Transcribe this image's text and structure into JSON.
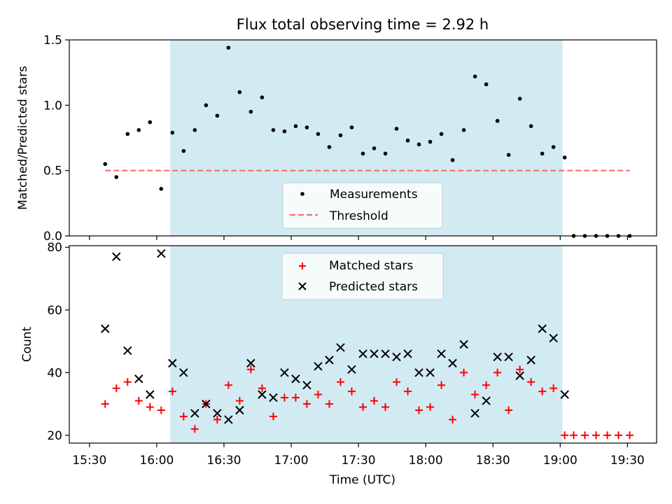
{
  "chart_data": [
    {
      "type": "scatter",
      "title": "Flux total observing time = 2.92 h",
      "ylabel": "Matched/Predicted stars",
      "xlabel": "",
      "ylim": [
        0,
        1.5
      ],
      "yticks": [
        "0.0",
        "0.5",
        "1.0",
        "1.5"
      ],
      "threshold": {
        "name": "Threshold",
        "value": 0.5,
        "x_range": [
          "15:37",
          "19:31"
        ],
        "color": "#ff6b6b"
      },
      "shaded_region": {
        "x_start": "16:06",
        "x_end": "19:01",
        "color": "#add8e6"
      },
      "legend_position": "lower-center",
      "series": [
        {
          "name": "Measurements",
          "color": "#000000",
          "marker": "dot",
          "x": [
            "15:37",
            "15:42",
            "15:47",
            "15:52",
            "15:57",
            "16:02",
            "16:07",
            "16:12",
            "16:17",
            "16:22",
            "16:27",
            "16:32",
            "16:37",
            "16:42",
            "16:47",
            "16:52",
            "16:57",
            "17:02",
            "17:07",
            "17:12",
            "17:17",
            "17:22",
            "17:27",
            "17:32",
            "17:37",
            "17:42",
            "17:47",
            "17:52",
            "17:57",
            "18:02",
            "18:07",
            "18:12",
            "18:17",
            "18:22",
            "18:27",
            "18:32",
            "18:37",
            "18:42",
            "18:47",
            "18:52",
            "18:57",
            "19:02",
            "19:06",
            "19:11",
            "19:16",
            "19:21",
            "19:26",
            "19:31"
          ],
          "y": [
            0.55,
            0.45,
            0.78,
            0.81,
            0.87,
            0.36,
            0.79,
            0.65,
            0.81,
            1.0,
            0.92,
            1.44,
            1.1,
            0.95,
            1.06,
            0.81,
            0.8,
            0.84,
            0.83,
            0.78,
            0.68,
            0.77,
            0.83,
            0.63,
            0.67,
            0.63,
            0.82,
            0.73,
            0.7,
            0.72,
            0.78,
            0.58,
            0.81,
            1.22,
            1.16,
            0.88,
            0.62,
            1.05,
            0.84,
            0.63,
            0.68,
            0.6,
            0,
            0,
            0,
            0,
            0,
            0
          ]
        }
      ]
    },
    {
      "type": "scatter",
      "title": "",
      "xlabel": "Time (UTC)",
      "ylabel": "Count",
      "ylim": [
        17.5,
        80.5
      ],
      "yticks": [
        "20",
        "40",
        "60",
        "80"
      ],
      "xticks": [
        "15:30",
        "16:00",
        "16:30",
        "17:00",
        "17:30",
        "18:00",
        "18:30",
        "19:00",
        "19:30"
      ],
      "xlim": [
        "15:21",
        "19:43"
      ],
      "legend_position": "upper-center",
      "series": [
        {
          "name": "Matched stars",
          "color": "#ff0000",
          "marker": "plus",
          "x": [
            "15:37",
            "15:42",
            "15:47",
            "15:52",
            "15:57",
            "16:02",
            "16:07",
            "16:12",
            "16:17",
            "16:22",
            "16:27",
            "16:32",
            "16:37",
            "16:42",
            "16:47",
            "16:52",
            "16:57",
            "17:02",
            "17:07",
            "17:12",
            "17:17",
            "17:22",
            "17:27",
            "17:32",
            "17:37",
            "17:42",
            "17:47",
            "17:52",
            "17:57",
            "18:02",
            "18:07",
            "18:12",
            "18:17",
            "18:22",
            "18:27",
            "18:32",
            "18:37",
            "18:42",
            "18:47",
            "18:52",
            "18:57",
            "19:02",
            "19:06",
            "19:11",
            "19:16",
            "19:21",
            "19:26",
            "19:31"
          ],
          "y": [
            30,
            35,
            37,
            31,
            29,
            28,
            34,
            26,
            22,
            30,
            25,
            36,
            31,
            41,
            35,
            26,
            32,
            32,
            30,
            33,
            30,
            37,
            34,
            29,
            31,
            29,
            37,
            34,
            28,
            29,
            36,
            25,
            40,
            33,
            36,
            40,
            28,
            41,
            37,
            34,
            35,
            20,
            20,
            20,
            20,
            20,
            20,
            20
          ]
        },
        {
          "name": "Predicted stars",
          "color": "#000000",
          "marker": "x",
          "x": [
            "15:37",
            "15:42",
            "15:47",
            "15:52",
            "15:57",
            "16:02",
            "16:07",
            "16:12",
            "16:17",
            "16:22",
            "16:27",
            "16:32",
            "16:37",
            "16:42",
            "16:47",
            "16:52",
            "16:57",
            "17:02",
            "17:07",
            "17:12",
            "17:17",
            "17:22",
            "17:27",
            "17:32",
            "17:37",
            "17:42",
            "17:47",
            "17:52",
            "17:57",
            "18:02",
            "18:07",
            "18:12",
            "18:17",
            "18:22",
            "18:27",
            "18:32",
            "18:37",
            "18:42",
            "18:47",
            "18:52",
            "18:57",
            "19:02"
          ],
          "y": [
            54,
            77,
            47,
            38,
            33,
            78,
            43,
            40,
            27,
            30,
            27,
            25,
            28,
            43,
            33,
            32,
            40,
            38,
            36,
            42,
            44,
            48,
            41,
            46,
            46,
            46,
            45,
            46,
            40,
            40,
            46,
            43,
            49,
            27,
            31,
            45,
            45,
            39,
            44,
            54,
            51,
            33
          ]
        }
      ]
    }
  ]
}
